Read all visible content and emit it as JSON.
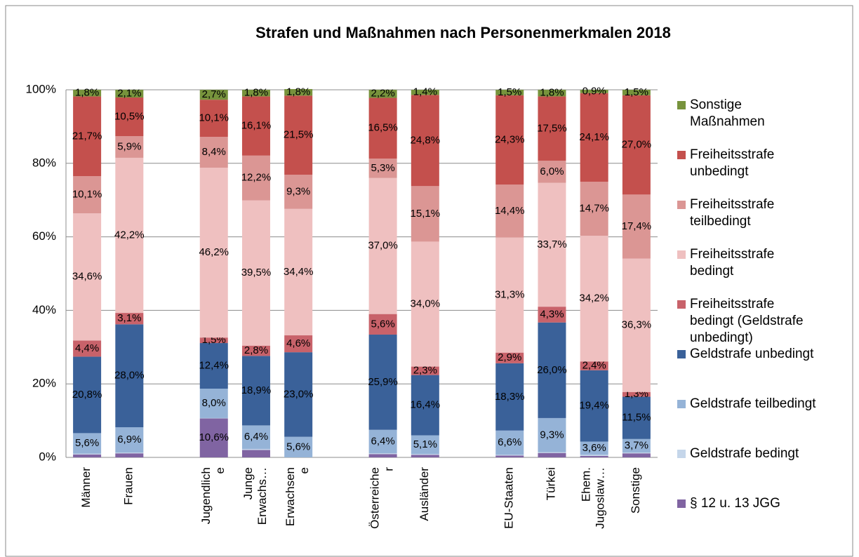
{
  "chart_data": {
    "type": "stacked_bar",
    "title": "Strafen und Maßnahmen nach Personenmerkmalen 2018",
    "categories": [
      "Männer",
      "Frauen",
      null,
      "Jugendlich\ne",
      "Junge\nErwachs…",
      "Erwachsen\ne",
      null,
      "Österreiche\nr",
      "Ausländer",
      null,
      "EU-Staaten",
      "Türkei",
      "Ehem.\nJugoslaw…",
      "Sonstige"
    ],
    "ylim": [
      0,
      100
    ],
    "yticks": [
      {
        "value": 0,
        "label": "0%"
      },
      {
        "value": 20,
        "label": "20%"
      },
      {
        "value": 40,
        "label": "40%"
      },
      {
        "value": 60,
        "label": "60%"
      },
      {
        "value": 80,
        "label": "80%"
      },
      {
        "value": 100,
        "label": "100%"
      }
    ],
    "grid": true,
    "legend": "right",
    "series": [
      {
        "name": "§ 12 u. 13 JGG",
        "color": "#8064a2",
        "values": [
          0.8,
          1.1,
          null,
          10.6,
          2.0,
          0,
          null,
          0.9,
          0.7,
          null,
          0.5,
          1.2,
          0.4,
          1.1
        ],
        "value_labels": [
          null,
          null,
          null,
          "10,6%",
          null,
          null,
          null,
          null,
          null,
          null,
          null,
          null,
          null,
          null
        ]
      },
      {
        "name": "Geldstrafe bedingt",
        "color": "#c5d6ea",
        "values": [
          0.2,
          0.2,
          null,
          0.1,
          0.3,
          0,
          null,
          0.2,
          0.2,
          null,
          0.2,
          0.2,
          0.3,
          0.2
        ],
        "value_labels": [
          null,
          null,
          null,
          null,
          null,
          null,
          null,
          null,
          null,
          null,
          null,
          null,
          null,
          null
        ]
      },
      {
        "name": "Geldstrafe teilbedingt",
        "color": "#95b3d7",
        "values": [
          5.6,
          6.9,
          null,
          8.0,
          6.4,
          5.6,
          null,
          6.4,
          5.1,
          null,
          6.6,
          9.3,
          3.6,
          3.7
        ],
        "value_labels": [
          "5,6%",
          "6,9%",
          null,
          "8,0%",
          "6,4%",
          "5,6%",
          null,
          "6,4%",
          "5,1%",
          null,
          "6,6%",
          "9,3%",
          "3,6%",
          "3,7%"
        ]
      },
      {
        "name": "Geldstrafe unbedingt",
        "color": "#3a6199",
        "values": [
          20.8,
          28.0,
          null,
          12.4,
          18.9,
          23.0,
          null,
          25.9,
          16.4,
          null,
          18.3,
          26.0,
          19.4,
          11.5
        ],
        "value_labels": [
          "20,8%",
          "28,0%",
          null,
          "12,4%",
          "18,9%",
          "23,0%",
          null,
          "25,9%",
          "16,4%",
          null,
          "18,3%",
          "26,0%",
          "19,4%",
          "11,5%"
        ]
      },
      {
        "name": "Freiheitsstrafe\nbedingt (Geldstrafe\nunbedingt)",
        "color": "#c8626a",
        "values": [
          4.4,
          3.1,
          null,
          1.5,
          2.8,
          4.6,
          null,
          5.6,
          2.3,
          null,
          2.9,
          4.3,
          2.4,
          1.3
        ],
        "value_labels": [
          "4,4%",
          "3,1%",
          null,
          "1,5%",
          "2,8%",
          "4,6%",
          null,
          "5,6%",
          "2,3%",
          null,
          "2,9%",
          "4,3%",
          "2,4%",
          "1,3%"
        ]
      },
      {
        "name": "Freiheitsstrafe\nbedingt",
        "color": "#efc0c0",
        "values": [
          34.6,
          42.2,
          null,
          46.2,
          39.5,
          34.4,
          null,
          37.0,
          34.0,
          null,
          31.3,
          33.7,
          34.2,
          36.3
        ],
        "value_labels": [
          "34,6%",
          "42,2%",
          null,
          "46,2%",
          "39,5%",
          "34,4%",
          null,
          "37,0%",
          "34,0%",
          null,
          "31,3%",
          "33,7%",
          "34,2%",
          "36,3%"
        ]
      },
      {
        "name": "Freiheitsstrafe\nteilbedingt",
        "color": "#db9694",
        "values": [
          10.1,
          5.9,
          null,
          8.4,
          12.2,
          9.3,
          null,
          5.3,
          15.1,
          null,
          14.4,
          6.0,
          14.7,
          17.4
        ],
        "value_labels": [
          "10,1%",
          "5,9%",
          null,
          "8,4%",
          "12,2%",
          "9,3%",
          null,
          "5,3%",
          "15,1%",
          null,
          "14,4%",
          "6,0%",
          "14,7%",
          "17,4%"
        ]
      },
      {
        "name": "Freiheitsstrafe\nunbedingt",
        "color": "#c4504d",
        "values": [
          21.7,
          10.5,
          null,
          10.1,
          16.1,
          21.5,
          null,
          16.5,
          24.8,
          null,
          24.3,
          17.5,
          24.1,
          27.0
        ],
        "value_labels": [
          "21,7%",
          "10,5%",
          null,
          "10,1%",
          "16,1%",
          "21,5%",
          null,
          "16,5%",
          "24,8%",
          null,
          "24,3%",
          "17,5%",
          "24,1%",
          "27,0%"
        ]
      },
      {
        "name": "Sonstige\nMaßnahmen",
        "color": "#77933c",
        "values": [
          1.8,
          2.1,
          null,
          2.7,
          1.8,
          1.8,
          null,
          2.2,
          1.4,
          null,
          1.5,
          1.8,
          0.9,
          1.5
        ],
        "value_labels": [
          "1,8%",
          "2,1%",
          null,
          "2,7%",
          "1,8%",
          "1,8%",
          null,
          "2,2%",
          "1,4%",
          null,
          "1,5%",
          "1,8%",
          "0,9%",
          "1,5%"
        ]
      }
    ]
  }
}
